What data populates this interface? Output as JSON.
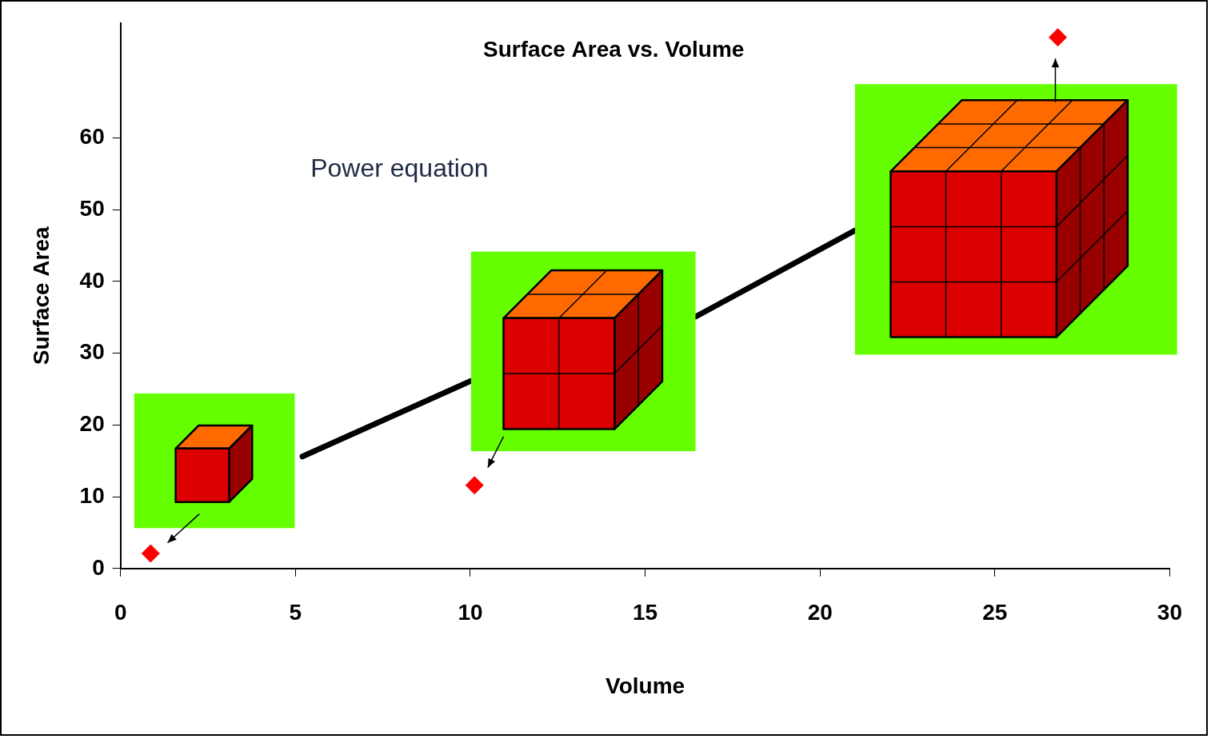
{
  "chart_data": {
    "type": "scatter",
    "title": "Surface Area vs. Volume",
    "x_label": "Volume",
    "y_label": "Surface Area",
    "annotation": "Power equation",
    "xlim": [
      0,
      30
    ],
    "xticks": [
      0,
      5,
      10,
      15,
      20,
      25,
      30
    ],
    "ylim": [
      0,
      76
    ],
    "yticks": [
      0,
      10,
      20,
      30,
      40,
      50,
      60
    ],
    "grid": false,
    "series": [
      {
        "type": "scatter",
        "marker": "diamond",
        "color": "#ff0000",
        "x": [
          0.86,
          10.12,
          26.8
        ],
        "values": [
          2.1,
          11.6,
          74
        ]
      },
      {
        "type": "line",
        "line_style": "solid",
        "color": "#000000",
        "x": [
          5.2,
          10,
          16.45,
          21
        ],
        "values": [
          15.6,
          26.1,
          35.1,
          47.1
        ]
      }
    ]
  }
}
